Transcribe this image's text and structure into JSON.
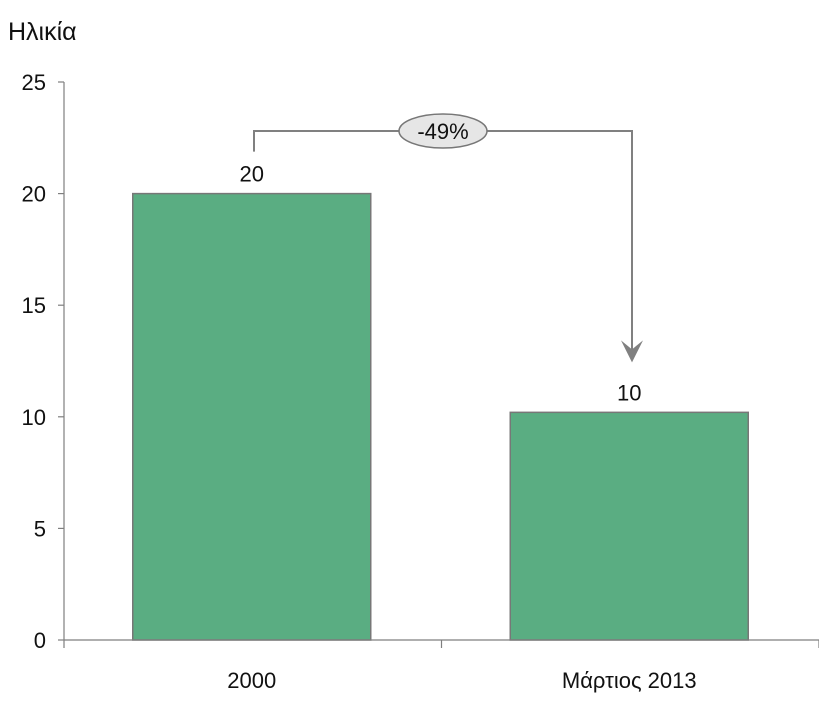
{
  "chart_data": {
    "type": "bar",
    "ylabel": "Ηλικία",
    "categories": [
      "2000",
      "Μάρτιος 2013"
    ],
    "values": [
      20,
      10.2
    ],
    "data_labels": [
      "20",
      "10"
    ],
    "ylim": [
      0,
      25
    ],
    "yticks": [
      0,
      5,
      10,
      15,
      20,
      25
    ],
    "grid": false,
    "legend": "none",
    "annotation": {
      "label": "-49%",
      "from": "2000",
      "to": "Μάρτιος 2013"
    },
    "colors": {
      "bar_fill": "#5aad82",
      "bar_stroke": "#777777",
      "axis": "#7f7f7f",
      "connector": "#808080",
      "annotation_fill": "#e6e6e6"
    }
  }
}
